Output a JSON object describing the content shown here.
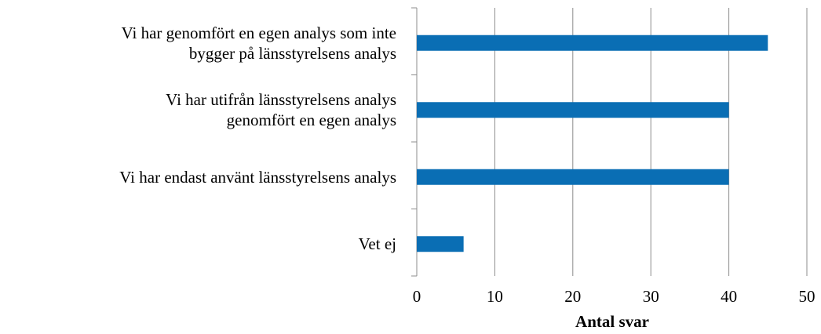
{
  "chart_data": {
    "type": "bar",
    "orientation": "horizontal",
    "categories": [
      "Vi har genomfört en egen analys som inte\nbygger på länsstyrelsens analys",
      "Vi har utifrån länsstyrelsens analys\ngenomfört en egen analys",
      "Vi har endast använt länsstyrelsens analys",
      "Vet ej"
    ],
    "values": [
      45,
      40,
      40,
      6
    ],
    "color": "#0a6eb4",
    "xlim": [
      0,
      50
    ],
    "xticks": [
      0,
      10,
      20,
      30,
      40,
      50
    ],
    "xlabel": "Antal svar",
    "grid": true
  }
}
